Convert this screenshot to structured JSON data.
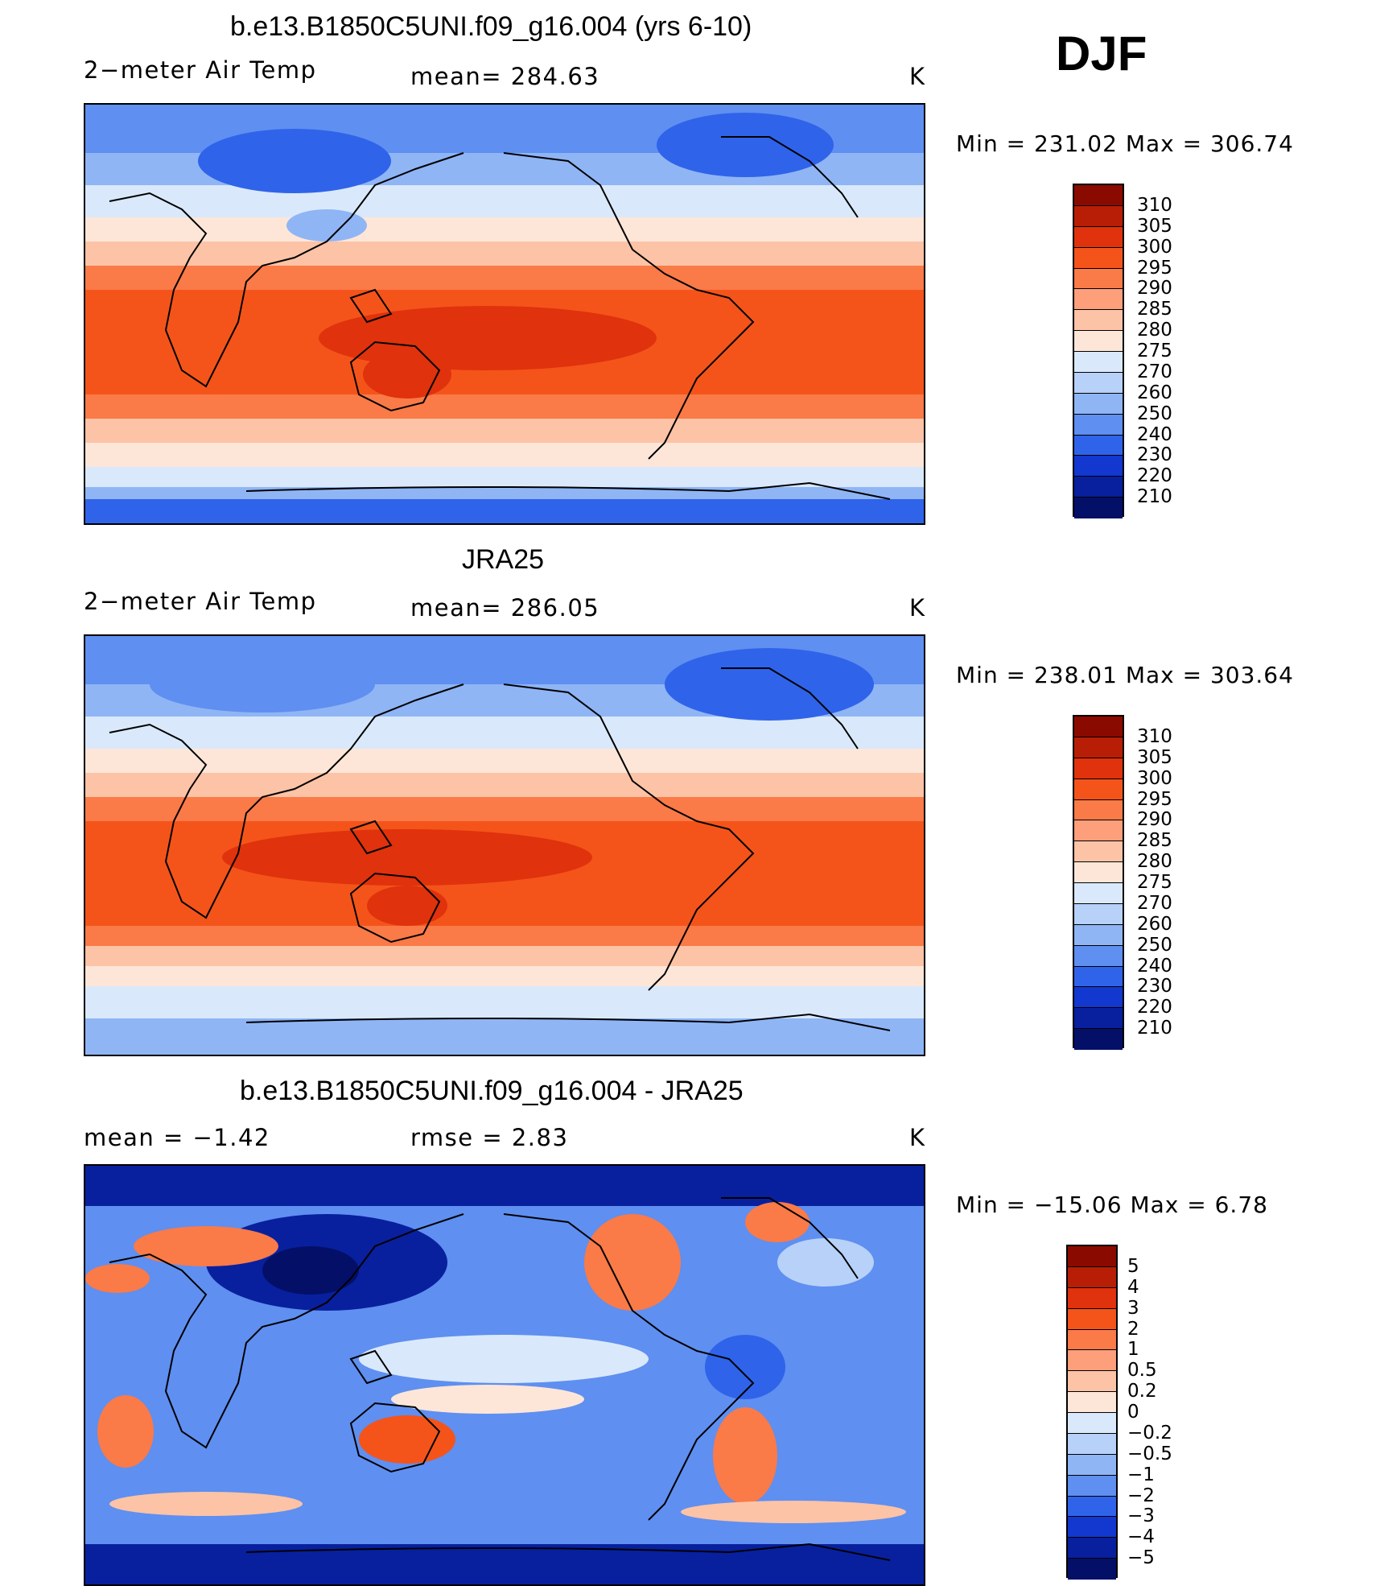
{
  "season": "DJF",
  "panels": [
    {
      "title": "b.e13.B1850C5UNI.f09_g16.004 (yrs 6-10)",
      "variable": "2−meter Air Temp",
      "stat": "mean=  284.63",
      "units": "K",
      "minmax": "Min  =  231.02  Max  =  306.74",
      "kind": "abs"
    },
    {
      "title": "JRA25",
      "variable": "2−meter Air Temp",
      "stat": "mean=  286.05",
      "units": "K",
      "minmax": "Min  =  238.01  Max  =  303.64",
      "kind": "abs"
    },
    {
      "title": "b.e13.B1850C5UNI.f09_g16.004 - JRA25",
      "variable": "mean  =    −1.42",
      "stat": "rmse  =     2.83",
      "units": "K",
      "minmax": "Min  =  −15.06  Max  =       6.78",
      "kind": "diff"
    }
  ],
  "colorbars": {
    "abs": {
      "labels": [
        "310",
        "305",
        "300",
        "295",
        "290",
        "285",
        "280",
        "275",
        "270",
        "260",
        "250",
        "240",
        "230",
        "220",
        "210"
      ],
      "colors": [
        "#8b0a00",
        "#b81e06",
        "#e0320c",
        "#f4541a",
        "#fa7a48",
        "#fc9f7a",
        "#fcc3a6",
        "#fde6d8",
        "#d9e9fb",
        "#b7d1f8",
        "#8fb5f5",
        "#5f8ff0",
        "#2f63ea",
        "#1238d0",
        "#08209e",
        "#040f68"
      ]
    },
    "diff": {
      "labels": [
        "5",
        "4",
        "3",
        "2",
        "1",
        "0.5",
        "0.2",
        "0",
        "−0.2",
        "−0.5",
        "−1",
        "−2",
        "−3",
        "−4",
        "−5"
      ],
      "colors": [
        "#8b0a00",
        "#b81e06",
        "#e0320c",
        "#f4541a",
        "#fa7a48",
        "#fc9f7a",
        "#fcc3a6",
        "#fde6d8",
        "#d9e9fb",
        "#b7d1f8",
        "#8fb5f5",
        "#5f8ff0",
        "#2f63ea",
        "#1238d0",
        "#08209e",
        "#040f68"
      ]
    }
  }
}
